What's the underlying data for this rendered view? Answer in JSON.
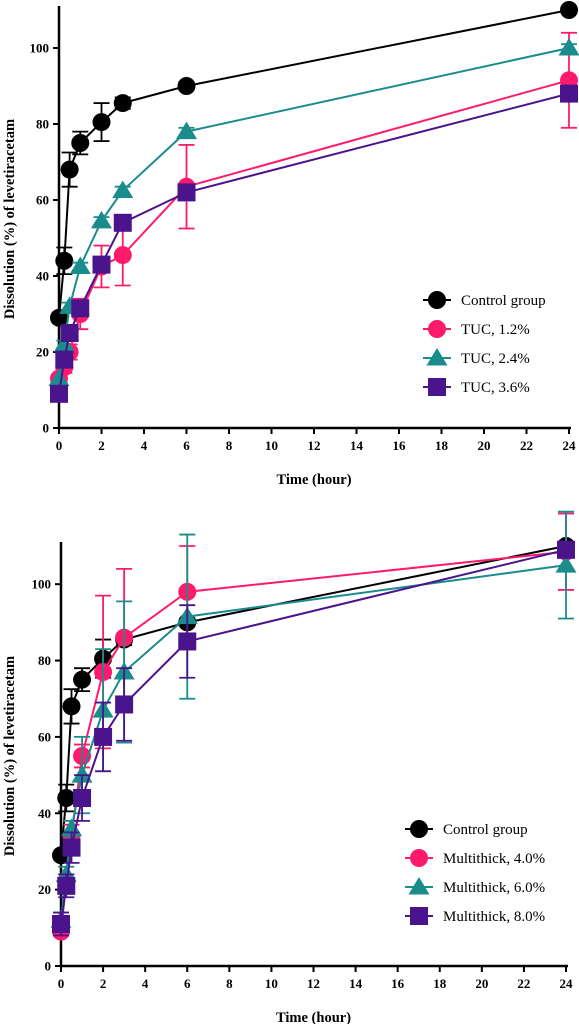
{
  "colors": {
    "control": "#000000",
    "low": "#ff1a6e",
    "mid": "#1a8c8c",
    "high": "#4a148c"
  },
  "chart_data": [
    {
      "type": "line",
      "title": "",
      "xlabel": "Time (hour)",
      "ylabel": "Dissolution (%) of levetiracetam",
      "xlim": [
        0,
        24
      ],
      "ylim": [
        0,
        110
      ],
      "xticks": [
        0,
        2,
        4,
        6,
        8,
        10,
        12,
        14,
        16,
        18,
        20,
        22,
        24
      ],
      "yticks": [
        0,
        20,
        40,
        60,
        80,
        100
      ],
      "legend_position": "bottom-right",
      "series": [
        {
          "name": "Control group",
          "marker": "circle",
          "color": "#000000",
          "x": [
            0,
            0.25,
            0.5,
            1,
            2,
            3,
            6,
            24
          ],
          "y": [
            29,
            44,
            68,
            75,
            80.5,
            85.5,
            90,
            110
          ],
          "err": [
            0,
            3.5,
            4.5,
            3,
            5,
            1.5,
            1,
            0
          ]
        },
        {
          "name": "TUC, 1.2%",
          "marker": "circle",
          "color": "#ff1a6e",
          "x": [
            0,
            0.25,
            0.5,
            1,
            2,
            3,
            6,
            24
          ],
          "y": [
            13,
            16,
            20,
            30,
            42.5,
            45.5,
            63.5,
            91.5
          ],
          "err": [
            1,
            1.5,
            2,
            4,
            5.5,
            8,
            11,
            12.5
          ]
        },
        {
          "name": "TUC, 2.4%",
          "marker": "triangle",
          "color": "#1a8c8c",
          "x": [
            0,
            0.25,
            0.5,
            1,
            2,
            3,
            6,
            24
          ],
          "y": [
            13,
            22,
            32,
            42.5,
            54.5,
            62.5,
            78,
            100
          ],
          "err": [
            0,
            1,
            1,
            1,
            1,
            1,
            1,
            1
          ]
        },
        {
          "name": "TUC, 3.6%",
          "marker": "square",
          "color": "#4a148c",
          "x": [
            0,
            0.25,
            0.5,
            1,
            2,
            3,
            6,
            24
          ],
          "y": [
            9,
            18,
            25,
            31.5,
            43,
            54,
            62,
            88
          ],
          "err": [
            1,
            1.5,
            1.5,
            2,
            2,
            1.5,
            1.5,
            2
          ]
        }
      ]
    },
    {
      "type": "line",
      "title": "",
      "xlabel": "Time (hour)",
      "ylabel": "Dissolution (%) of levetiracetam",
      "xlim": [
        0,
        24
      ],
      "ylim": [
        0,
        110
      ],
      "xticks": [
        0,
        2,
        4,
        6,
        8,
        10,
        12,
        14,
        16,
        18,
        20,
        22,
        24
      ],
      "yticks": [
        0,
        20,
        40,
        60,
        80,
        100
      ],
      "legend_position": "bottom-right",
      "series": [
        {
          "name": "Control group",
          "marker": "circle",
          "color": "#000000",
          "x": [
            0,
            0.25,
            0.5,
            1,
            2,
            3,
            6,
            24
          ],
          "y": [
            29,
            44,
            68,
            75,
            80.5,
            85.5,
            90,
            110
          ],
          "err": [
            0,
            3.5,
            4.5,
            3,
            5,
            1.5,
            1,
            0
          ]
        },
        {
          "name": "Multithick, 4.0%",
          "marker": "circle",
          "color": "#ff1a6e",
          "x": [
            0,
            0.25,
            0.5,
            1,
            2,
            3,
            6,
            24
          ],
          "y": [
            9,
            22,
            34,
            55,
            77,
            86,
            98,
            108.5
          ],
          "err": [
            1,
            2,
            3,
            3,
            20,
            18,
            12,
            10
          ]
        },
        {
          "name": "Multithick, 6.0%",
          "marker": "triangle",
          "color": "#1a8c8c",
          "x": [
            0,
            0.25,
            0.5,
            1,
            2,
            3,
            6,
            24
          ],
          "y": [
            12,
            24,
            36,
            50,
            67,
            77,
            91.5,
            105
          ],
          "err": [
            2,
            2,
            2,
            10,
            16,
            18.5,
            21.5,
            14
          ]
        },
        {
          "name": "Multithick, 8.0%",
          "marker": "square",
          "color": "#4a148c",
          "x": [
            0,
            0.25,
            0.5,
            1,
            2,
            3,
            6,
            24
          ],
          "y": [
            11,
            21,
            31,
            44,
            60,
            68.5,
            85,
            109
          ],
          "err": [
            3,
            3,
            4,
            6,
            9,
            9.5,
            9.5,
            2
          ]
        }
      ]
    }
  ]
}
